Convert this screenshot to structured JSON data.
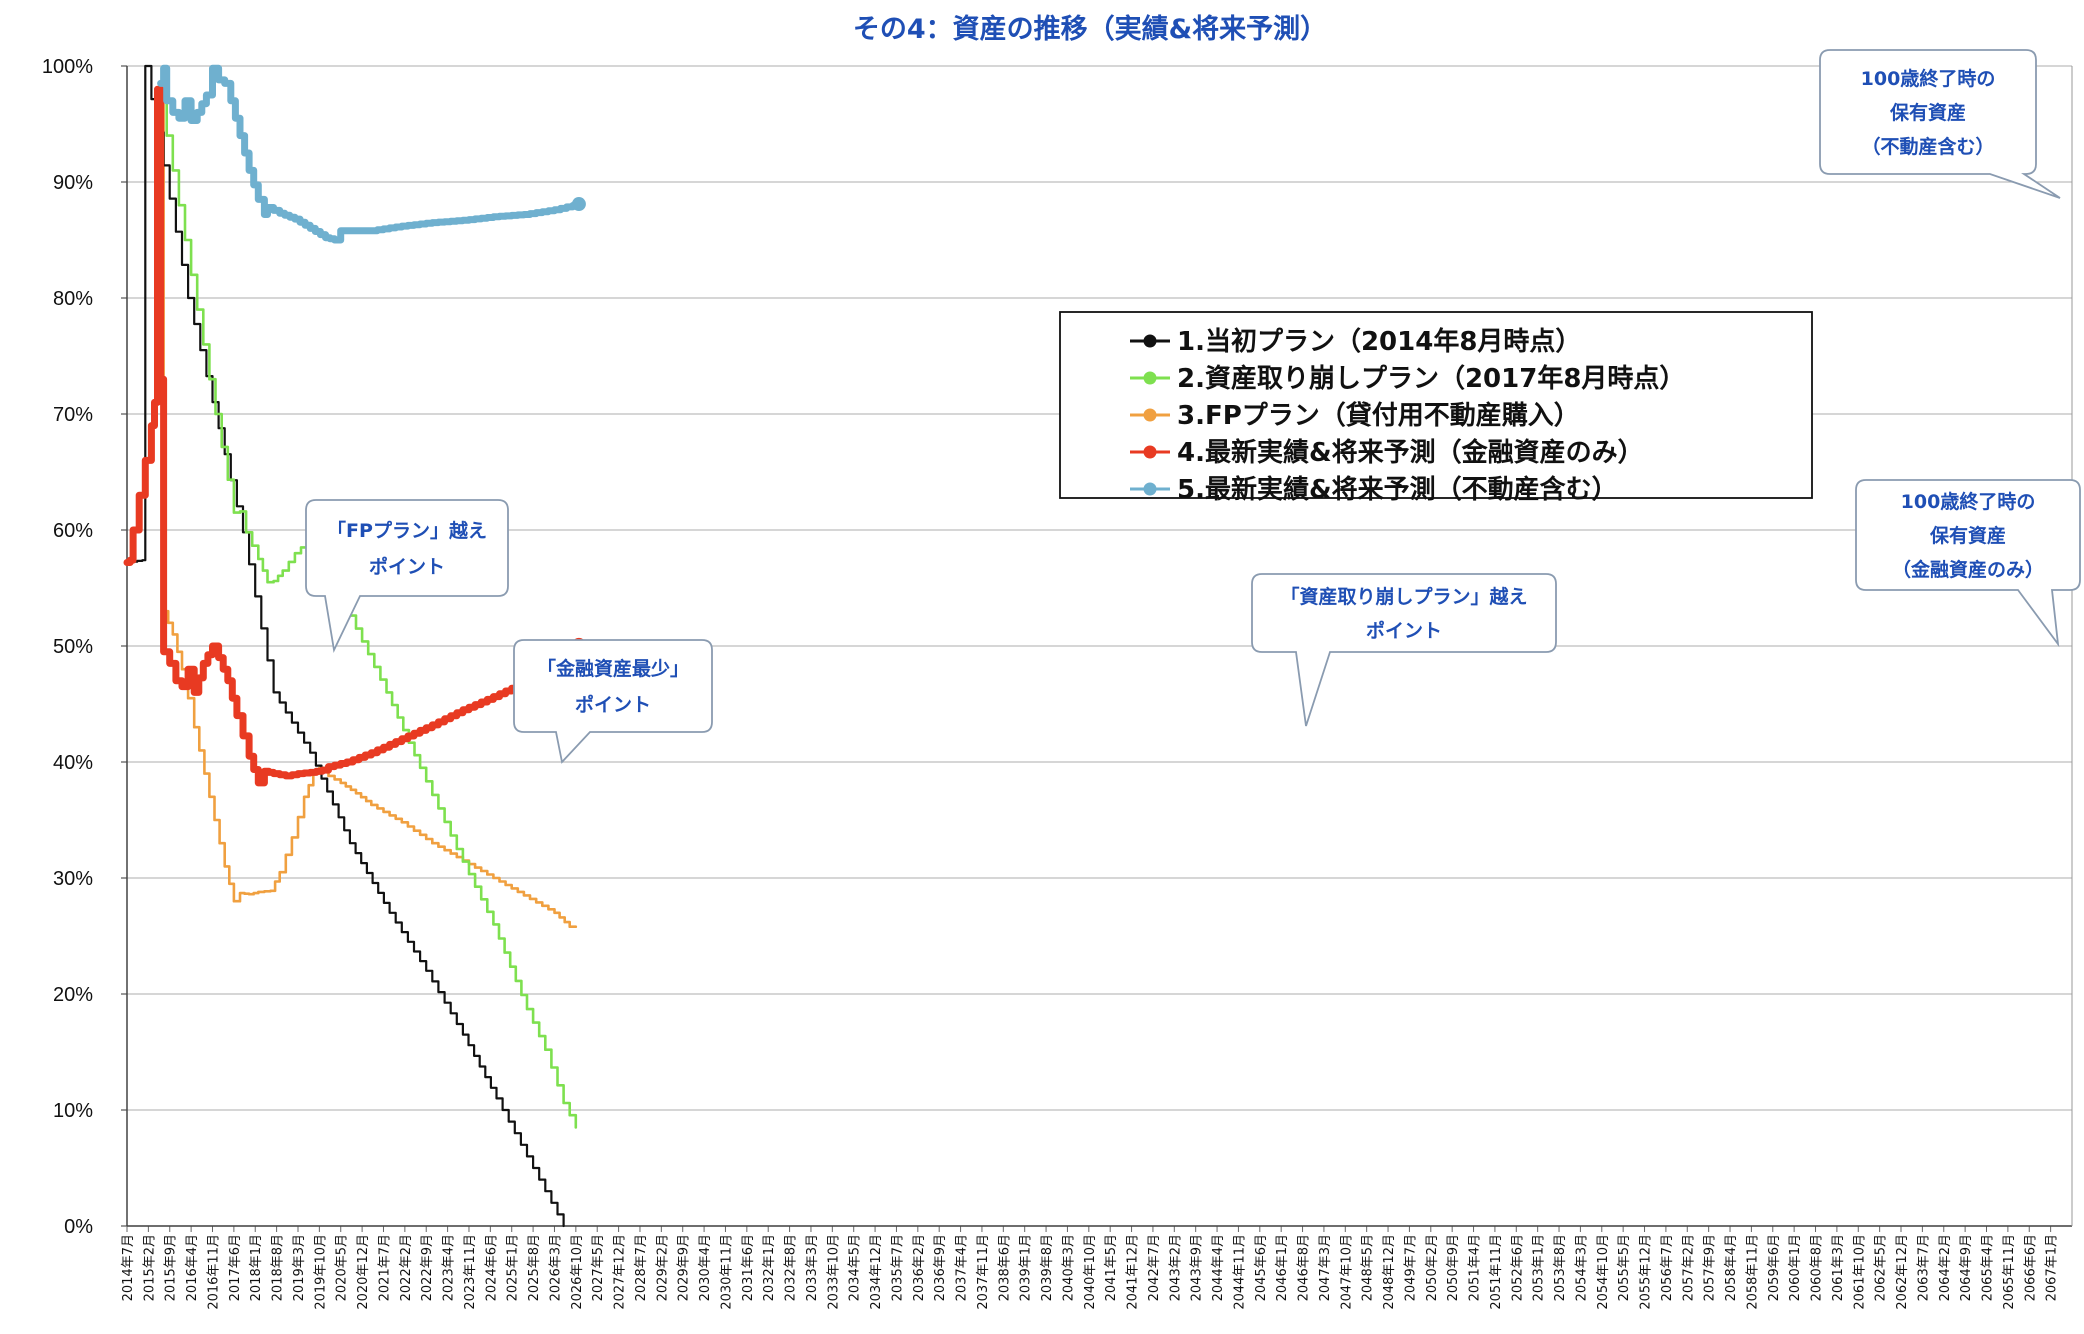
{
  "chart_data": {
    "type": "line",
    "title": "その4：資産の推移（実績&将来予測）",
    "ylim": [
      0,
      100
    ],
    "yticks": [
      "0%",
      "10%",
      "20%",
      "30%",
      "40%",
      "50%",
      "60%",
      "70%",
      "80%",
      "90%",
      "100%"
    ],
    "xticks": [
      "2014年7月",
      "2015年2月",
      "2015年9月",
      "2016年4月",
      "2016年11月",
      "2017年6月",
      "2018年1月",
      "2018年8月",
      "2019年3月",
      "2019年10月",
      "2020年5月",
      "2020年12月",
      "2021年7月",
      "2022年2月",
      "2022年9月",
      "2023年4月",
      "2023年11月",
      "2024年6月",
      "2025年1月",
      "2025年8月",
      "2026年3月",
      "2026年10月",
      "2027年5月",
      "2027年12月",
      "2028年7月",
      "2029年2月",
      "2029年9月",
      "2030年4月",
      "2030年11月",
      "2031年6月",
      "2032年1月",
      "2032年8月",
      "2033年3月",
      "2033年10月",
      "2034年5月",
      "2034年12月",
      "2035年7月",
      "2036年2月",
      "2036年9月",
      "2037年4月",
      "2037年11月",
      "2038年6月",
      "2039年1月",
      "2039年8月",
      "2040年3月",
      "2040年10月",
      "2041年5月",
      "2041年12月",
      "2042年7月",
      "2043年2月",
      "2043年9月",
      "2044年4月",
      "2044年11月",
      "2045年6月",
      "2046年1月",
      "2046年8月",
      "2047年3月",
      "2047年10月",
      "2048年5月",
      "2048年12月",
      "2049年7月",
      "2050年2月",
      "2050年9月",
      "2051年4月",
      "2051年11月",
      "2052年6月",
      "2053年1月",
      "2053年8月",
      "2054年3月",
      "2054年10月",
      "2055年5月",
      "2055年12月",
      "2056年7月",
      "2057年2月",
      "2057年9月",
      "2058年4月",
      "2058年11月",
      "2059年6月",
      "2060年1月",
      "2060年8月",
      "2061年3月",
      "2061年10月",
      "2062年5月",
      "2062年12月",
      "2063年7月",
      "2064年2月",
      "2064年9月",
      "2065年4月",
      "2065年11月",
      "2066年6月",
      "2067年1月"
    ],
    "legend_placement": "center-right",
    "grid": true,
    "series": [
      {
        "name": "1.当初プラン（2014年8月時点）",
        "color": "#111111",
        "points": [
          [
            0,
            57.2
          ],
          [
            5,
            57.4
          ],
          [
            6,
            100
          ],
          [
            20,
            80
          ],
          [
            38,
            59.8
          ],
          [
            48,
            46
          ],
          [
            60,
            40.8
          ],
          [
            73,
            33
          ],
          [
            86,
            27
          ],
          [
            98,
            22
          ],
          [
            110,
            16.5
          ],
          [
            121,
            11
          ],
          [
            135,
            4
          ],
          [
            143,
            0
          ]
        ]
      },
      {
        "name": "2.資産取り崩しプラン（2017年8月時点）",
        "color": "#7ee04f",
        "points": [
          [
            0,
            57.2
          ],
          [
            1,
            57.4
          ],
          [
            2,
            60
          ],
          [
            4,
            63
          ],
          [
            6,
            66
          ],
          [
            8,
            69
          ],
          [
            9,
            71
          ],
          [
            10,
            98
          ],
          [
            11,
            97
          ],
          [
            21,
            82
          ],
          [
            29,
            70
          ],
          [
            35,
            61.5
          ],
          [
            37,
            61.6
          ],
          [
            39,
            59.8
          ],
          [
            43,
            57.5
          ],
          [
            46,
            55.5
          ],
          [
            48,
            55.6
          ],
          [
            51,
            56.5
          ],
          [
            55,
            58
          ],
          [
            59,
            59
          ],
          [
            61,
            59.3
          ],
          [
            64,
            58.2
          ],
          [
            75,
            51.5
          ],
          [
            85,
            46
          ],
          [
            96,
            39.5
          ],
          [
            108,
            32.5
          ],
          [
            120,
            26
          ],
          [
            131,
            18.7
          ],
          [
            137,
            15.2
          ],
          [
            143,
            10.6
          ],
          [
            147,
            8.5
          ]
        ]
      },
      {
        "name": "3.FPプラン（貸付用不動産購入）",
        "color": "#f0a040",
        "points": [
          [
            0,
            57.2
          ],
          [
            1,
            57.4
          ],
          [
            2,
            60
          ],
          [
            4,
            63
          ],
          [
            6,
            66
          ],
          [
            8,
            69
          ],
          [
            9,
            71
          ],
          [
            10,
            98
          ],
          [
            11,
            97
          ],
          [
            12,
            53
          ],
          [
            15,
            51
          ],
          [
            18,
            48
          ],
          [
            22,
            43
          ],
          [
            27,
            37
          ],
          [
            32,
            31
          ],
          [
            35,
            28
          ],
          [
            37,
            28.7
          ],
          [
            40,
            28.6
          ],
          [
            43,
            28.8
          ],
          [
            47,
            28.9
          ],
          [
            50,
            30.5
          ],
          [
            54,
            33.5
          ],
          [
            58,
            37
          ],
          [
            61,
            39
          ],
          [
            63,
            39.5
          ],
          [
            66,
            38.8
          ],
          [
            70,
            38.2
          ],
          [
            75,
            37.3
          ],
          [
            80,
            36.3
          ],
          [
            90,
            34.8
          ],
          [
            100,
            33
          ],
          [
            110,
            31.5
          ],
          [
            120,
            30
          ],
          [
            130,
            28.5
          ],
          [
            140,
            27
          ],
          [
            145,
            25.8
          ],
          [
            147,
            25.8
          ]
        ]
      },
      {
        "name": "4.最新実績&将来予測（金融資産のみ）",
        "color": "#e83a22",
        "points": [
          [
            0,
            57.2
          ],
          [
            1,
            57.4
          ],
          [
            2,
            60
          ],
          [
            4,
            63
          ],
          [
            6,
            66
          ],
          [
            8,
            69
          ],
          [
            9,
            71
          ],
          [
            10,
            98
          ],
          [
            11,
            73
          ],
          [
            12,
            49.5
          ],
          [
            14,
            48.5
          ],
          [
            16,
            47
          ],
          [
            18,
            46.5
          ],
          [
            20,
            48
          ],
          [
            22,
            46
          ],
          [
            25,
            48.5
          ],
          [
            28,
            50
          ],
          [
            30,
            49
          ],
          [
            33,
            47
          ],
          [
            36,
            44
          ],
          [
            40,
            40.5
          ],
          [
            43,
            38.2
          ],
          [
            45,
            39.2
          ],
          [
            48,
            39
          ],
          [
            52,
            38.8
          ],
          [
            56,
            39
          ],
          [
            60,
            39.1
          ],
          [
            64,
            39.3
          ],
          [
            66,
            39.6
          ],
          [
            72,
            40
          ],
          [
            80,
            40.8
          ],
          [
            90,
            42
          ],
          [
            100,
            43.2
          ],
          [
            110,
            44.5
          ],
          [
            118,
            45.4
          ],
          [
            128,
            46.6
          ],
          [
            138,
            48
          ],
          [
            148,
            50.1
          ]
        ]
      },
      {
        "name": "5.最新実績&将来予測（不動産含む）",
        "color": "#6fb0cf",
        "points": [
          [
            11,
            98.5
          ],
          [
            12,
            99.8
          ],
          [
            13,
            97
          ],
          [
            15,
            96
          ],
          [
            17,
            95.5
          ],
          [
            19,
            97
          ],
          [
            21,
            95.3
          ],
          [
            23,
            96
          ],
          [
            26,
            97.5
          ],
          [
            28,
            99.8
          ],
          [
            30,
            98.8
          ],
          [
            32,
            98.5
          ],
          [
            34,
            97
          ],
          [
            37,
            94
          ],
          [
            40,
            91
          ],
          [
            43,
            88.5
          ],
          [
            45,
            87.2
          ],
          [
            46,
            87.8
          ],
          [
            50,
            87.3
          ],
          [
            55,
            86.8
          ],
          [
            60,
            86
          ],
          [
            65,
            85.2
          ],
          [
            68,
            85
          ],
          [
            70,
            85.8
          ],
          [
            80,
            85.8
          ],
          [
            90,
            86.2
          ],
          [
            100,
            86.5
          ],
          [
            110,
            86.7
          ],
          [
            120,
            87
          ],
          [
            130,
            87.2
          ],
          [
            140,
            87.6
          ],
          [
            148,
            88.1
          ]
        ]
      }
    ],
    "callouts": [
      {
        "lines": [
          "100歳終了時の",
          "保有資産",
          "（不動産含む）"
        ]
      },
      {
        "lines": [
          "「FPプラン」越え",
          "ポイント"
        ]
      },
      {
        "lines": [
          "100歳終了時の",
          "保有資産",
          "（金融資産のみ）"
        ]
      },
      {
        "lines": [
          "「資産取り崩しプラン」越え",
          "ポイント"
        ]
      },
      {
        "lines": [
          "「金融資産最少」",
          "ポイント"
        ]
      }
    ]
  }
}
